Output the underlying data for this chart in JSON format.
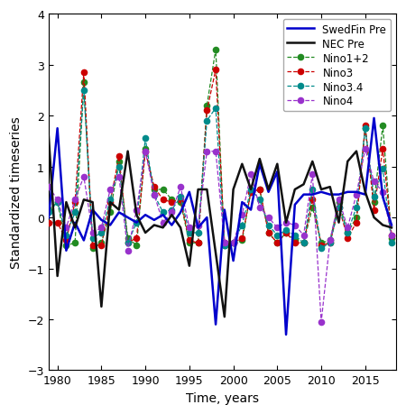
{
  "years": [
    1979,
    1980,
    1981,
    1982,
    1983,
    1984,
    1985,
    1986,
    1987,
    1988,
    1989,
    1990,
    1991,
    1992,
    1993,
    1994,
    1995,
    1996,
    1997,
    1998,
    1999,
    2000,
    2001,
    2002,
    2003,
    2004,
    2005,
    2006,
    2007,
    2008,
    2009,
    2010,
    2011,
    2012,
    2013,
    2014,
    2015,
    2016,
    2017,
    2018
  ],
  "swedfin": [
    0.0,
    1.75,
    -0.65,
    -0.1,
    -0.45,
    0.15,
    -0.05,
    -0.15,
    0.1,
    0.0,
    -0.1,
    0.05,
    -0.05,
    0.05,
    -0.15,
    0.1,
    0.5,
    -0.2,
    0.0,
    -2.1,
    0.15,
    -0.85,
    0.3,
    0.15,
    1.05,
    0.5,
    0.9,
    -2.3,
    0.25,
    0.45,
    0.45,
    0.5,
    0.45,
    0.45,
    0.5,
    0.5,
    0.45,
    1.95,
    0.4,
    -0.15
  ],
  "nec": [
    1.6,
    -1.15,
    0.3,
    -0.2,
    0.35,
    0.3,
    -1.75,
    0.3,
    0.15,
    1.3,
    0.05,
    -0.3,
    -0.15,
    -0.2,
    0.05,
    -0.2,
    -0.95,
    0.55,
    0.55,
    -0.7,
    -1.95,
    0.55,
    1.05,
    0.55,
    1.15,
    0.55,
    1.05,
    -0.1,
    0.55,
    0.65,
    1.1,
    0.55,
    0.6,
    -0.1,
    1.1,
    1.3,
    0.5,
    0.0,
    -0.15,
    -0.2
  ],
  "nino12": [
    0.15,
    0.3,
    -0.55,
    -0.5,
    2.65,
    -0.6,
    -0.5,
    0.1,
    1.1,
    -0.4,
    -0.55,
    1.35,
    0.55,
    0.55,
    0.35,
    0.3,
    -0.5,
    -0.5,
    2.2,
    3.3,
    -0.55,
    -0.5,
    -0.45,
    0.5,
    0.55,
    -0.3,
    -0.5,
    -0.3,
    -0.45,
    -0.5,
    0.2,
    -0.5,
    -0.45,
    0.3,
    -0.3,
    0.0,
    1.75,
    0.3,
    1.8,
    -0.4
  ],
  "nino3": [
    -0.1,
    -0.1,
    -0.45,
    0.3,
    2.85,
    -0.55,
    -0.55,
    0.3,
    1.2,
    -0.5,
    -0.4,
    1.3,
    0.6,
    0.35,
    0.3,
    0.35,
    -0.45,
    -0.5,
    2.1,
    2.9,
    -0.5,
    -0.5,
    -0.4,
    0.5,
    0.55,
    -0.3,
    -0.5,
    -0.3,
    -0.5,
    -0.5,
    0.35,
    -0.55,
    -0.5,
    0.2,
    -0.4,
    -0.1,
    1.8,
    0.15,
    1.35,
    -0.35
  ],
  "nino34": [
    0.1,
    0.3,
    -0.35,
    0.1,
    2.5,
    -0.4,
    -0.3,
    0.35,
    1.0,
    -0.5,
    -0.1,
    1.55,
    0.45,
    0.1,
    0.15,
    0.4,
    -0.3,
    -0.3,
    1.9,
    2.15,
    -0.55,
    -0.5,
    -0.15,
    0.55,
    0.35,
    -0.15,
    -0.35,
    -0.25,
    -0.35,
    -0.5,
    0.55,
    -0.6,
    -0.5,
    0.2,
    -0.3,
    0.2,
    1.75,
    0.4,
    0.95,
    -0.5
  ],
  "nino4": [
    0.6,
    0.35,
    -0.2,
    0.35,
    0.8,
    -0.3,
    -0.2,
    0.55,
    0.8,
    -0.65,
    0.15,
    1.3,
    0.45,
    -0.1,
    0.1,
    0.6,
    -0.2,
    -0.15,
    1.3,
    1.3,
    -0.5,
    -0.5,
    0.05,
    0.85,
    0.2,
    0.0,
    -0.2,
    -0.1,
    -0.15,
    -0.35,
    0.85,
    -2.05,
    -0.45,
    0.35,
    -0.2,
    0.45,
    1.35,
    0.7,
    0.5,
    -0.35
  ],
  "swedfin_color": "#0000cc",
  "nec_color": "#111111",
  "nino12_color": "#228B22",
  "nino3_color": "#cc0000",
  "nino34_color": "#008B8B",
  "nino4_color": "#9932CC",
  "xlabel": "Time, years",
  "ylabel": "Standardized timeseries",
  "ylim": [
    -3,
    4
  ],
  "xlim": [
    1979,
    2018.5
  ],
  "yticks": [
    -3,
    -2,
    -1,
    0,
    1,
    2,
    3,
    4
  ],
  "xticks": [
    1980,
    1985,
    1990,
    1995,
    2000,
    2005,
    2010,
    2015
  ],
  "figwidth": 4.5,
  "figheight": 4.6
}
